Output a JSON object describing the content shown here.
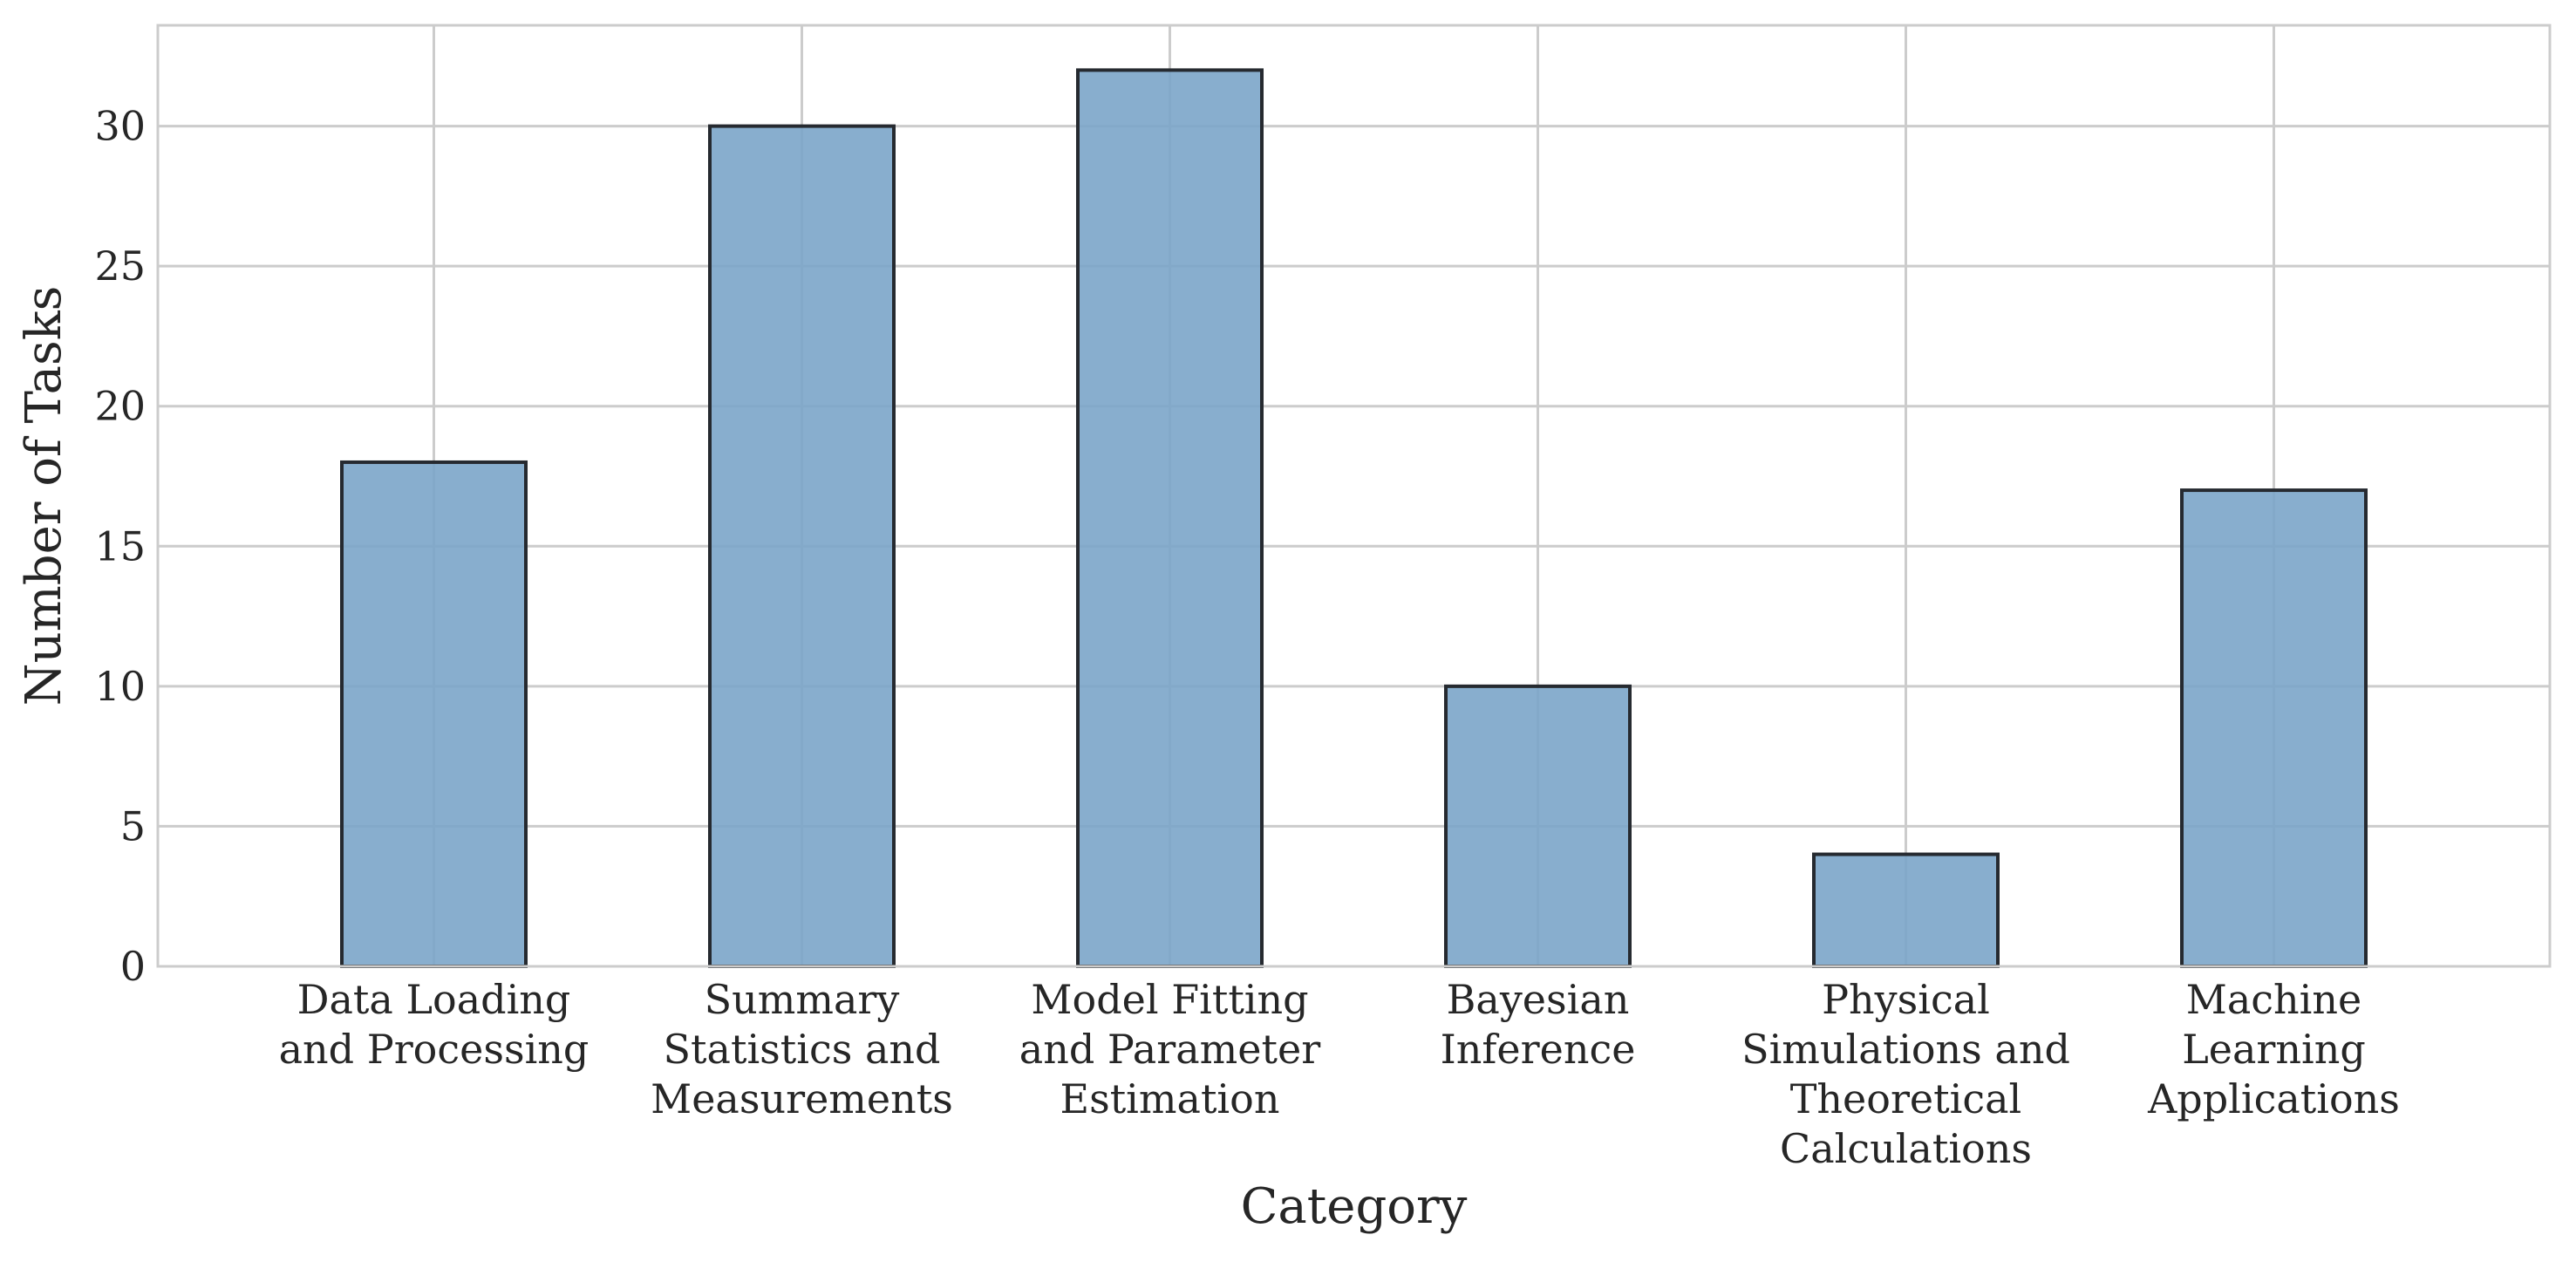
{
  "chart_data": {
    "type": "bar",
    "title": "",
    "xlabel": "Category",
    "ylabel": "Number of Tasks",
    "categories": [
      [
        "Data Loading",
        "and Processing"
      ],
      [
        "Summary",
        "Statistics and",
        "Measurements"
      ],
      [
        "Model Fitting",
        "and Parameter",
        "Estimation"
      ],
      [
        "Bayesian",
        "Inference"
      ],
      [
        "Physical",
        "Simulations and",
        "Theoretical",
        "Calculations"
      ],
      [
        "Machine",
        "Learning",
        "Applications"
      ]
    ],
    "values": [
      18,
      30,
      32,
      10,
      4,
      17
    ],
    "ylim": [
      0,
      33.6
    ],
    "yticks": [
      0,
      5,
      10,
      15,
      20,
      25,
      30
    ],
    "grid": true,
    "colors": {
      "bar_fill": "#7ba5c9",
      "bar_edge": "#262a30",
      "grid": "#cccccc",
      "frame": "#cccccc"
    }
  }
}
